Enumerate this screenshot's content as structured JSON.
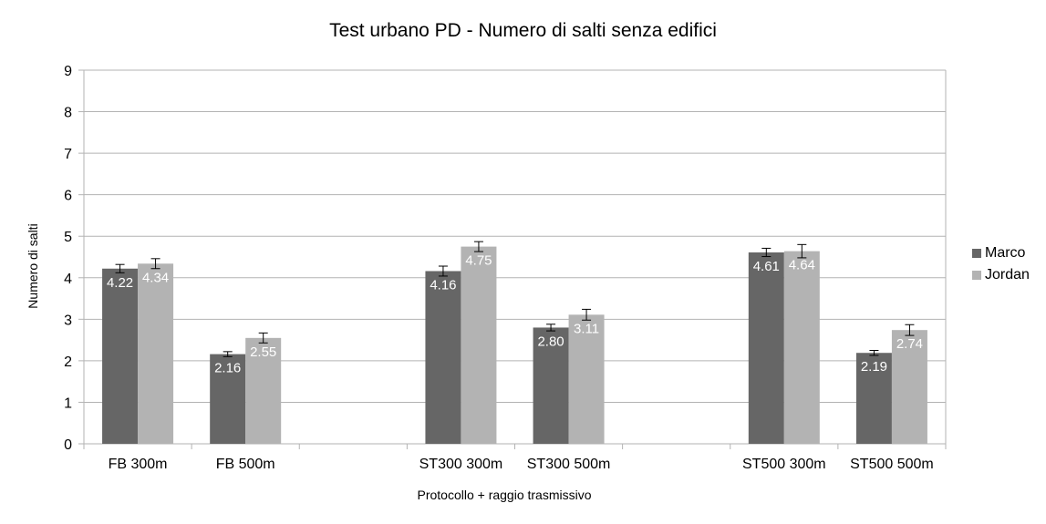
{
  "chart_data": {
    "type": "bar",
    "title": "Test urbano PD - Numero di salti senza edifici",
    "xlabel": "Protocollo + raggio trasmissivo",
    "ylabel": "Numero di salti",
    "ylim": [
      0,
      9
    ],
    "yticks": [
      "0",
      "1",
      "2",
      "3",
      "4",
      "5",
      "6",
      "7",
      "8",
      "9"
    ],
    "grid": true,
    "legend_position": "right",
    "categories": [
      "FB 300m",
      "FB 500m",
      "",
      "ST300 300m",
      "ST300 500m",
      "",
      "ST500 300m",
      "ST500 500m"
    ],
    "series": [
      {
        "name": "Marco",
        "color": "#666666",
        "values": [
          4.22,
          2.16,
          null,
          4.16,
          2.8,
          null,
          4.61,
          2.19
        ],
        "labels": [
          "4.22",
          "2.16",
          "",
          "4.16",
          "2.80",
          "",
          "4.61",
          "2.19"
        ],
        "errors": [
          0.1,
          0.06,
          null,
          0.12,
          0.08,
          null,
          0.1,
          0.06
        ]
      },
      {
        "name": "Jordan",
        "color": "#b3b3b3",
        "values": [
          4.34,
          2.55,
          null,
          4.75,
          3.11,
          null,
          4.64,
          2.74
        ],
        "labels": [
          "4.34",
          "2.55",
          "",
          "4.75",
          "3.11",
          "",
          "4.64",
          "2.74"
        ],
        "errors": [
          0.12,
          0.12,
          null,
          0.12,
          0.13,
          null,
          0.16,
          0.13
        ]
      }
    ]
  }
}
